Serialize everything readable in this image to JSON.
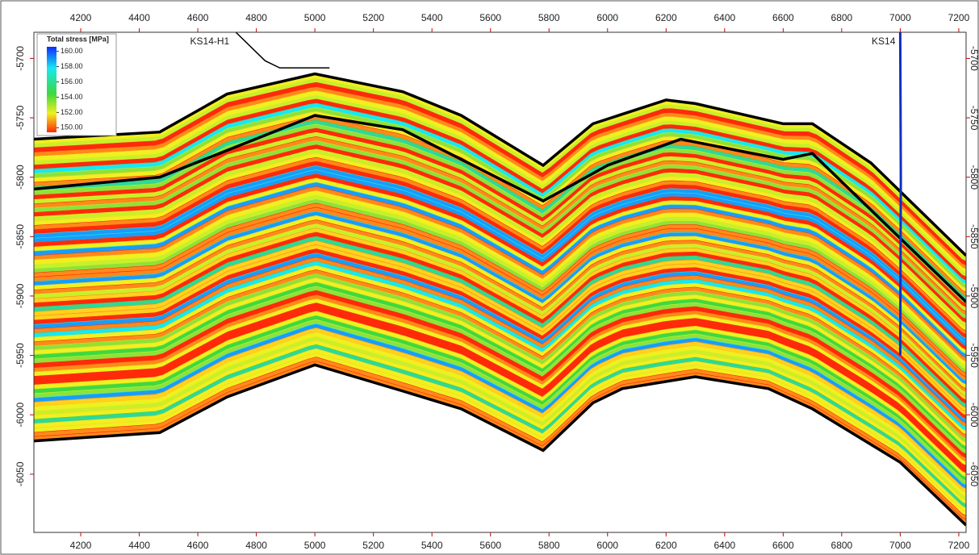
{
  "chart_data": {
    "type": "section",
    "xlim": [
      4040,
      7225
    ],
    "ylim": [
      -6099,
      -5678
    ],
    "xticks": [
      4200,
      4400,
      4600,
      4800,
      5000,
      5200,
      5400,
      5600,
      5800,
      6000,
      6200,
      6400,
      6600,
      6800,
      7000,
      7200
    ],
    "yticks": [
      -5700,
      -5750,
      -5800,
      -5850,
      -5900,
      -5950,
      -6000,
      -6050
    ],
    "colorbar": {
      "title": "Total stress [MPa]",
      "clim": [
        149.4,
        160.6
      ],
      "ticks": [
        {
          "value": 160,
          "label": "160.00"
        },
        {
          "value": 158,
          "label": "158.00"
        },
        {
          "value": 156,
          "label": "156.00"
        },
        {
          "value": 154,
          "label": "154.00"
        },
        {
          "value": 152,
          "label": "152.00"
        },
        {
          "value": 150,
          "label": "150.00"
        }
      ]
    },
    "horizons": [
      {
        "x": [
          4040,
          4470,
          4700,
          5000,
          5300,
          5500,
          5780,
          5950,
          6200,
          6300,
          6600,
          6700,
          6900,
          7225
        ],
        "values": [
          -5768,
          -5762,
          -5730,
          -5713,
          -5728,
          -5748,
          -5790,
          -5755,
          -5735,
          -5738,
          -5755,
          -5755,
          -5788,
          -5866
        ]
      },
      {
        "x": [
          4040,
          4470,
          5000,
          5300,
          5780,
          6000,
          6250,
          6600,
          6700,
          7225
        ],
        "values": [
          -5810,
          -5800,
          -5748,
          -5760,
          -5820,
          -5790,
          -5768,
          -5785,
          -5780,
          -5905
        ]
      },
      {
        "x": [
          4040,
          4470,
          4700,
          5000,
          5300,
          5500,
          5780,
          5950,
          6050,
          6300,
          6550,
          6700,
          7000,
          7225
        ],
        "values": [
          -6022,
          -6015,
          -5985,
          -5958,
          -5980,
          -5995,
          -6030,
          -5990,
          -5978,
          -5968,
          -5978,
          -5995,
          -6040,
          -6093
        ]
      }
    ],
    "wells": [
      {
        "name": "KS14-H1",
        "x": [
          4730,
          4780,
          4830,
          4880,
          5050
        ],
        "values": [
          -5678,
          -5690,
          -5702,
          -5708,
          -5708
        ]
      },
      {
        "name": "KS14",
        "x": [
          7000,
          7002,
          7000
        ],
        "values": [
          -5678,
          -5800,
          -5950
        ]
      }
    ]
  }
}
